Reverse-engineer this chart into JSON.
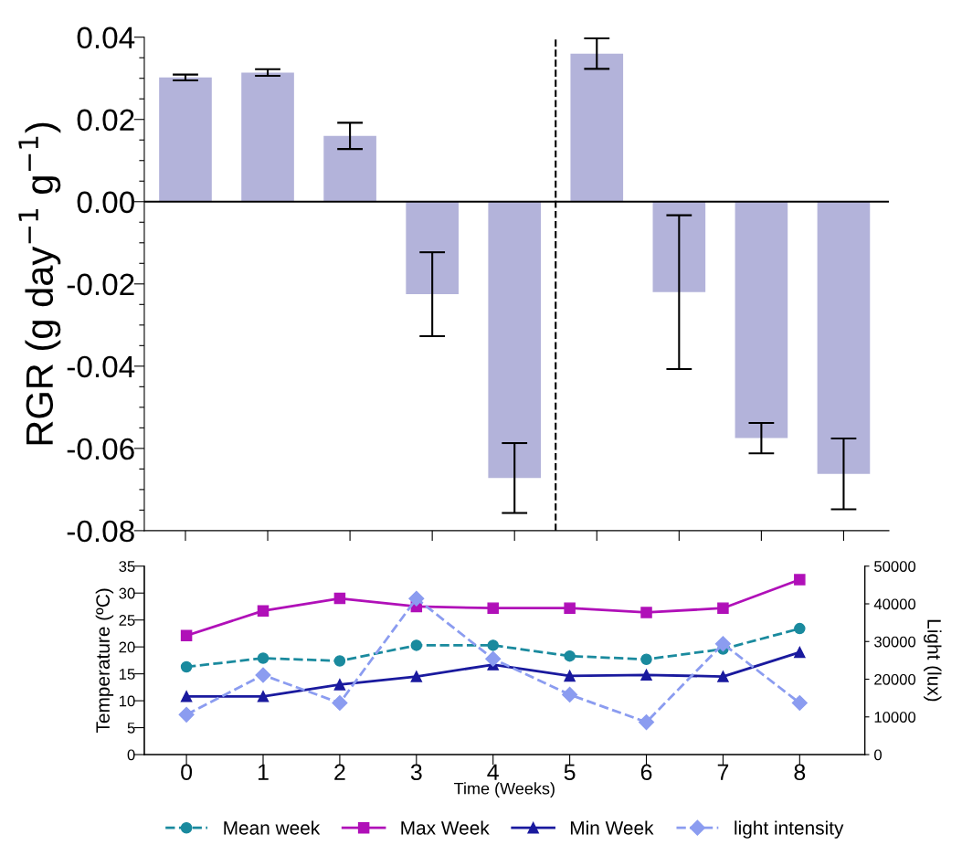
{
  "chart_data": [
    {
      "type": "bar",
      "ylabel": "RGR (g day$^{−1}$ g$^{−1}$)",
      "categories": [
        null,
        null,
        null,
        null,
        null,
        null,
        null,
        null,
        null
      ],
      "values": [
        0.0302,
        0.0314,
        0.016,
        -0.0225,
        -0.0672,
        0.036,
        -0.022,
        -0.0575,
        -0.0662
      ],
      "errors": [
        0.0007,
        0.0008,
        0.0032,
        0.0102,
        0.0085,
        0.0037,
        0.0187,
        0.0037,
        0.0086
      ],
      "color": "#b3b3da",
      "ylim": [
        -0.08,
        0.04
      ],
      "yticks": [
        {
          "value": -0.08,
          "label": "-0.08"
        },
        {
          "value": -0.075,
          "label": null
        },
        {
          "value": -0.07,
          "label": null
        },
        {
          "value": -0.065,
          "label": null
        },
        {
          "value": -0.06,
          "label": "-0.06"
        },
        {
          "value": -0.055,
          "label": null
        },
        {
          "value": -0.05,
          "label": null
        },
        {
          "value": -0.045,
          "label": null
        },
        {
          "value": -0.04,
          "label": "-0.04"
        },
        {
          "value": -0.035,
          "label": null
        },
        {
          "value": -0.03,
          "label": null
        },
        {
          "value": -0.025,
          "label": null
        },
        {
          "value": -0.02,
          "label": "-0.02"
        },
        {
          "value": -0.015,
          "label": null
        },
        {
          "value": -0.01,
          "label": null
        },
        {
          "value": -0.005,
          "label": null
        },
        {
          "value": 0,
          "label": "0.00"
        },
        {
          "value": 0.005,
          "label": null
        },
        {
          "value": 0.01,
          "label": null
        },
        {
          "value": 0.015,
          "label": null
        },
        {
          "value": 0.02,
          "label": "0.02"
        },
        {
          "value": 0.025,
          "label": null
        },
        {
          "value": 0.03,
          "label": null
        },
        {
          "value": 0.035,
          "label": null
        },
        {
          "value": 0.04,
          "label": "0.04"
        }
      ],
      "ref_lines": [
        {
          "axis": "y",
          "value": 0,
          "color": "#000000",
          "line_style": "solid"
        }
      ],
      "tick_labels": "y",
      "grid": false
    },
    {
      "type": "line",
      "xlabel": "Time (Weeks)",
      "ylabel": "Temperature (ºC)",
      "y2label": "Light (lux)",
      "x": [
        0,
        1,
        2,
        3,
        4,
        5,
        6,
        7,
        8
      ],
      "series": [
        {
          "name": "Mean week",
          "color": "#1a8a9e",
          "marker": "circle",
          "line_style": "dashed",
          "values": [
            16.3,
            17.9,
            17.4,
            20.3,
            20.3,
            18.3,
            17.7,
            19.6,
            23.4
          ]
        },
        {
          "name": "Max Week",
          "color": "#b010b8",
          "marker": "square",
          "line_style": "solid",
          "values": [
            22.1,
            26.7,
            29,
            27.5,
            27.2,
            27.2,
            26.4,
            27.2,
            32.5
          ]
        },
        {
          "name": "Min Week",
          "color": "#1a1a9e",
          "marker": "triangle",
          "line_style": "solid",
          "values": [
            10.8,
            10.8,
            13,
            14.5,
            16.7,
            14.6,
            14.8,
            14.5,
            19
          ]
        },
        {
          "name": "light intensity",
          "color": "#8b9cf0",
          "marker": "diamond",
          "line_style": "dashed",
          "axis": "y2",
          "values": [
            10600,
            21100,
            13700,
            41400,
            25400,
            15900,
            8600,
            29400,
            13700
          ]
        }
      ],
      "xlim": [
        -0.55,
        8.85
      ],
      "xticks": [
        0,
        1,
        2,
        3,
        4,
        5,
        6,
        7,
        8
      ],
      "ylim": [
        0,
        35
      ],
      "yticks": [
        0,
        5,
        10,
        15,
        20,
        25,
        30,
        35
      ],
      "y2lim": [
        0,
        50000
      ],
      "y2ticks": [
        0,
        10000,
        20000,
        30000,
        40000,
        50000
      ],
      "legend": "bottom",
      "grid": false
    }
  ]
}
